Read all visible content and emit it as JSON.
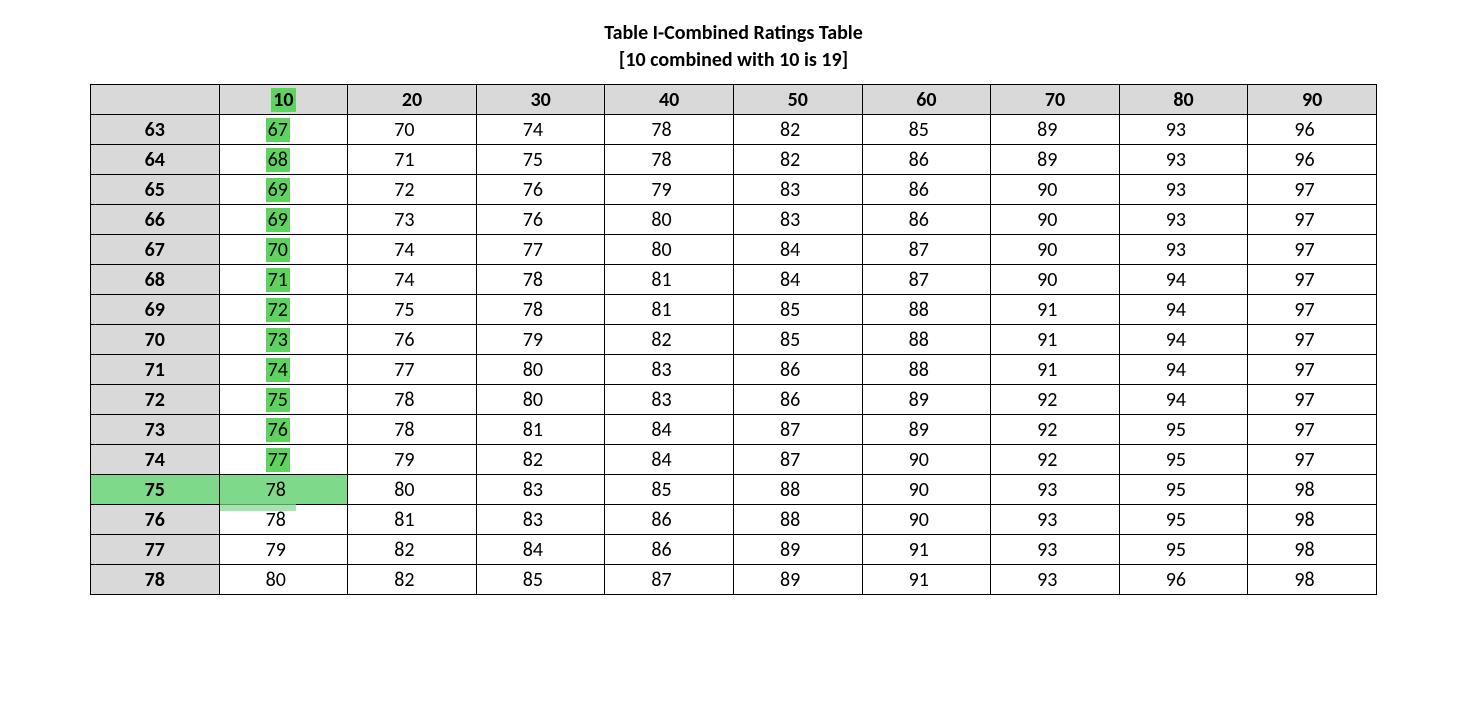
{
  "title": {
    "line1": "Table I-Combined Ratings Table",
    "line2": "[10 combined with 10 is 19]",
    "fontsize": 20,
    "fontweight": 700
  },
  "table": {
    "type": "table",
    "background_color": "#ffffff",
    "header_background_color": "#d9d9d9",
    "grid_color": "#000000",
    "cell_fontsize": 20,
    "highlight_color": "#5fd35f",
    "highlight_row_color": "#7fd98a",
    "columns": [
      "10",
      "20",
      "30",
      "40",
      "50",
      "60",
      "70",
      "80",
      "90"
    ],
    "row_headers": [
      "63",
      "64",
      "65",
      "66",
      "67",
      "68",
      "69",
      "70",
      "71",
      "72",
      "73",
      "74",
      "75",
      "76",
      "77",
      "78"
    ],
    "rows": [
      [
        "67",
        "70",
        "74",
        "78",
        "82",
        "85",
        "89",
        "93",
        "96"
      ],
      [
        "68",
        "71",
        "75",
        "78",
        "82",
        "86",
        "89",
        "93",
        "96"
      ],
      [
        "69",
        "72",
        "76",
        "79",
        "83",
        "86",
        "90",
        "93",
        "97"
      ],
      [
        "69",
        "73",
        "76",
        "80",
        "83",
        "86",
        "90",
        "93",
        "97"
      ],
      [
        "70",
        "74",
        "77",
        "80",
        "84",
        "87",
        "90",
        "93",
        "97"
      ],
      [
        "71",
        "74",
        "78",
        "81",
        "84",
        "87",
        "90",
        "94",
        "97"
      ],
      [
        "72",
        "75",
        "78",
        "81",
        "85",
        "88",
        "91",
        "94",
        "97"
      ],
      [
        "73",
        "76",
        "79",
        "82",
        "85",
        "88",
        "91",
        "94",
        "97"
      ],
      [
        "74",
        "77",
        "80",
        "83",
        "86",
        "88",
        "91",
        "94",
        "97"
      ],
      [
        "75",
        "78",
        "80",
        "83",
        "86",
        "89",
        "92",
        "94",
        "97"
      ],
      [
        "76",
        "78",
        "81",
        "84",
        "87",
        "89",
        "92",
        "95",
        "97"
      ],
      [
        "77",
        "79",
        "82",
        "84",
        "87",
        "90",
        "92",
        "95",
        "97"
      ],
      [
        "78",
        "80",
        "83",
        "85",
        "88",
        "90",
        "93",
        "95",
        "98"
      ],
      [
        "78",
        "81",
        "83",
        "86",
        "88",
        "90",
        "93",
        "95",
        "98"
      ],
      [
        "79",
        "82",
        "84",
        "86",
        "89",
        "91",
        "93",
        "95",
        "98"
      ],
      [
        "80",
        "82",
        "85",
        "87",
        "89",
        "91",
        "93",
        "96",
        "98"
      ]
    ],
    "highlight_column_header_index": 0,
    "highlight_first_col_until_row_index": 11,
    "full_highlight_row_index": 12
  }
}
